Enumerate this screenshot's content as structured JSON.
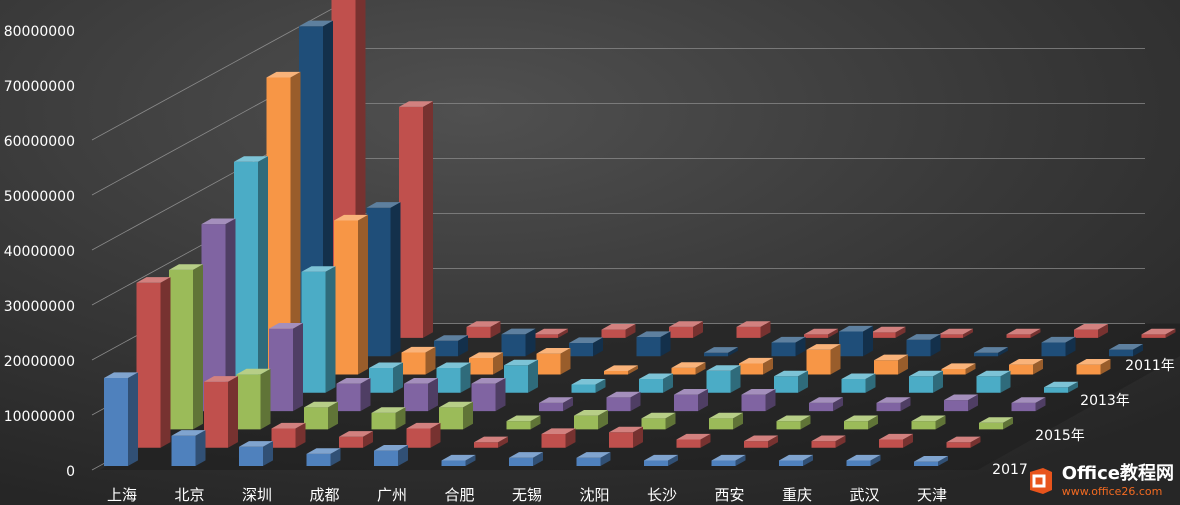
{
  "chart_data": {
    "type": "bar",
    "subtype": "3d-column",
    "title": "",
    "xlabel": "",
    "ylabel": "",
    "ylim": [
      0,
      80000000
    ],
    "yticks": [
      "0",
      "10000000",
      "20000000",
      "30000000",
      "40000000",
      "50000000",
      "60000000",
      "70000000",
      "80000000"
    ],
    "categories": [
      "上海",
      "北京",
      "深圳",
      "成都",
      "广州",
      "合肥",
      "无锡",
      "沈阳",
      "长沙",
      "西安",
      "重庆",
      "武汉",
      "天津"
    ],
    "depth_labels_visible": [
      "2011年",
      "2013年",
      "2015年",
      "2017"
    ],
    "grid": true,
    "series": [
      {
        "name": "2011年",
        "color": "#c0504d",
        "values": [
          85000000,
          42000000,
          2000000,
          0,
          1500000,
          2000000,
          2000000,
          0,
          1000000,
          500000,
          0,
          1500000,
          0
        ]
      },
      {
        "name": "",
        "color": "#1f4e79",
        "values": [
          60000000,
          27000000,
          2800000,
          4000000,
          2400000,
          3500000,
          0,
          2500000,
          4500000,
          3000000,
          0,
          2500000,
          1200000
        ]
      },
      {
        "name": "2013年",
        "color": "#f79646",
        "values": [
          54000000,
          28000000,
          4000000,
          3000000,
          3800000,
          0,
          1200000,
          2000000,
          4500000,
          2600000,
          1000000,
          1800000,
          1800000
        ]
      },
      {
        "name": "",
        "color": "#4bacc6",
        "values": [
          42000000,
          22000000,
          4500000,
          4500000,
          5000000,
          1500000,
          2500000,
          4000000,
          3000000,
          2500000,
          3000000,
          3000000,
          1000000
        ]
      },
      {
        "name": "2015年",
        "color": "#8064a2",
        "values": [
          34000000,
          15000000,
          5000000,
          5000000,
          5000000,
          1500000,
          2500000,
          3000000,
          3000000,
          1500000,
          1500000,
          2000000,
          1500000
        ]
      },
      {
        "name": "",
        "color": "#9bbb59",
        "values": [
          29000000,
          10000000,
          4000000,
          3000000,
          4000000,
          1500000,
          2500000,
          2000000,
          2000000,
          1500000,
          1500000,
          1500000,
          1200000
        ]
      },
      {
        "name": "",
        "color": "#c0504d",
        "values": [
          30000000,
          12000000,
          3500000,
          2000000,
          3500000,
          1000000,
          2500000,
          2800000,
          1500000,
          1200000,
          1200000,
          1500000,
          1000000
        ]
      },
      {
        "name": "2017",
        "color": "#4f81bd",
        "values": [
          16000000,
          5500000,
          3500000,
          2200000,
          2800000,
          1000000,
          1500000,
          1500000,
          1000000,
          1000000,
          1000000,
          1000000,
          800000
        ]
      }
    ]
  },
  "watermark": {
    "brand": "Office教程网",
    "url": "www.office26.com"
  }
}
